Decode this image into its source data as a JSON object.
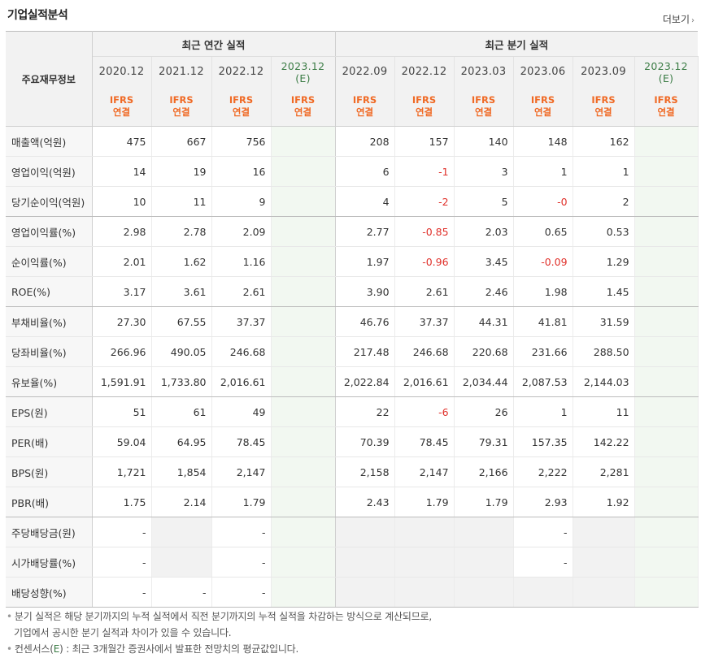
{
  "title": "기업실적분석",
  "more_label": "더보기",
  "table": {
    "row_header": "주요재무정보",
    "annual_label": "최근 연간 실적",
    "quarter_label": "최근 분기 실적",
    "periods": [
      {
        "line1": "2020.12",
        "line2": "",
        "basis1": "IFRS",
        "basis2": "연결",
        "estimate": false
      },
      {
        "line1": "2021.12",
        "line2": "",
        "basis1": "IFRS",
        "basis2": "연결",
        "estimate": false
      },
      {
        "line1": "2022.12",
        "line2": "",
        "basis1": "IFRS",
        "basis2": "연결",
        "estimate": false
      },
      {
        "line1": "2023.12",
        "line2": "(E)",
        "basis1": "IFRS",
        "basis2": "연결",
        "estimate": true
      },
      {
        "line1": "2022.09",
        "line2": "",
        "basis1": "IFRS",
        "basis2": "연결",
        "estimate": false
      },
      {
        "line1": "2022.12",
        "line2": "",
        "basis1": "IFRS",
        "basis2": "연결",
        "estimate": false
      },
      {
        "line1": "2023.03",
        "line2": "",
        "basis1": "IFRS",
        "basis2": "연결",
        "estimate": false
      },
      {
        "line1": "2023.06",
        "line2": "",
        "basis1": "IFRS",
        "basis2": "연결",
        "estimate": false
      },
      {
        "line1": "2023.09",
        "line2": "",
        "basis1": "IFRS",
        "basis2": "연결",
        "estimate": false
      },
      {
        "line1": "2023.12",
        "line2": "(E)",
        "basis1": "IFRS",
        "basis2": "연결",
        "estimate": true
      }
    ],
    "rows": [
      {
        "label": "매출액(억원)",
        "values": [
          "475",
          "667",
          "756",
          "",
          "208",
          "157",
          "140",
          "148",
          "162",
          ""
        ],
        "sep": false
      },
      {
        "label": "영업이익(억원)",
        "values": [
          "14",
          "19",
          "16",
          "",
          "6",
          "-1",
          "3",
          "1",
          "1",
          ""
        ],
        "sep": false
      },
      {
        "label": "당기순이익(억원)",
        "values": [
          "10",
          "11",
          "9",
          "",
          "4",
          "-2",
          "5",
          "-0",
          "2",
          ""
        ],
        "sep": true
      },
      {
        "label": "영업이익률(%)",
        "values": [
          "2.98",
          "2.78",
          "2.09",
          "",
          "2.77",
          "-0.85",
          "2.03",
          "0.65",
          "0.53",
          ""
        ],
        "sep": false
      },
      {
        "label": "순이익률(%)",
        "values": [
          "2.01",
          "1.62",
          "1.16",
          "",
          "1.97",
          "-0.96",
          "3.45",
          "-0.09",
          "1.29",
          ""
        ],
        "sep": false
      },
      {
        "label": "ROE(%)",
        "values": [
          "3.17",
          "3.61",
          "2.61",
          "",
          "3.90",
          "2.61",
          "2.46",
          "1.98",
          "1.45",
          ""
        ],
        "sep": true
      },
      {
        "label": "부채비율(%)",
        "values": [
          "27.30",
          "67.55",
          "37.37",
          "",
          "46.76",
          "37.37",
          "44.31",
          "41.81",
          "31.59",
          ""
        ],
        "sep": false
      },
      {
        "label": "당좌비율(%)",
        "values": [
          "266.96",
          "490.05",
          "246.68",
          "",
          "217.48",
          "246.68",
          "220.68",
          "231.66",
          "288.50",
          ""
        ],
        "sep": false
      },
      {
        "label": "유보율(%)",
        "values": [
          "1,591.91",
          "1,733.80",
          "2,016.61",
          "",
          "2,022.84",
          "2,016.61",
          "2,034.44",
          "2,087.53",
          "2,144.03",
          ""
        ],
        "sep": true
      },
      {
        "label": "EPS(원)",
        "values": [
          "51",
          "61",
          "49",
          "",
          "22",
          "-6",
          "26",
          "1",
          "11",
          ""
        ],
        "sep": false
      },
      {
        "label": "PER(배)",
        "values": [
          "59.04",
          "64.95",
          "78.45",
          "",
          "70.39",
          "78.45",
          "79.31",
          "157.35",
          "142.22",
          ""
        ],
        "sep": false
      },
      {
        "label": "BPS(원)",
        "values": [
          "1,721",
          "1,854",
          "2,147",
          "",
          "2,158",
          "2,147",
          "2,166",
          "2,222",
          "2,281",
          ""
        ],
        "sep": false
      },
      {
        "label": "PBR(배)",
        "values": [
          "1.75",
          "2.14",
          "1.79",
          "",
          "2.43",
          "1.79",
          "1.79",
          "2.93",
          "1.92",
          ""
        ],
        "sep": true
      },
      {
        "label": "주당배당금(원)",
        "values": [
          "-",
          "",
          "-",
          "",
          "",
          "",
          "",
          "-",
          "",
          ""
        ],
        "gray": [
          false,
          true,
          false,
          false,
          true,
          true,
          true,
          false,
          true,
          false
        ],
        "sep": false
      },
      {
        "label": "시가배당률(%)",
        "values": [
          "-",
          "",
          "-",
          "",
          "",
          "",
          "",
          "-",
          "",
          ""
        ],
        "gray": [
          false,
          true,
          false,
          false,
          true,
          true,
          true,
          false,
          true,
          false
        ],
        "sep": false
      },
      {
        "label": "배당성향(%)",
        "values": [
          "-",
          "-",
          "-",
          "",
          "",
          "",
          "",
          "",
          "",
          ""
        ],
        "gray": [
          false,
          false,
          false,
          false,
          true,
          true,
          true,
          true,
          true,
          false
        ],
        "sep": true
      }
    ]
  },
  "notes": {
    "line1": "분기 실적은 해당 분기까지의 누적 실적에서 직전 분기까지의 누적 실적을 차감하는 방식으로 계산되므로,",
    "line2": "기업에서 공시한 분기 실적과 차이가 있을 수 있습니다.",
    "line3_prefix": "컨센서스(",
    "line3_e": "E",
    "line3_suffix": ") : 최근 3개월간 증권사에서 발표한 전망치의 평균값입니다."
  },
  "colors": {
    "estimate_bg": "#f2f8f1",
    "negative": "#e0302a",
    "basis": "#f06a25",
    "estimate_text": "#3b7c45"
  }
}
